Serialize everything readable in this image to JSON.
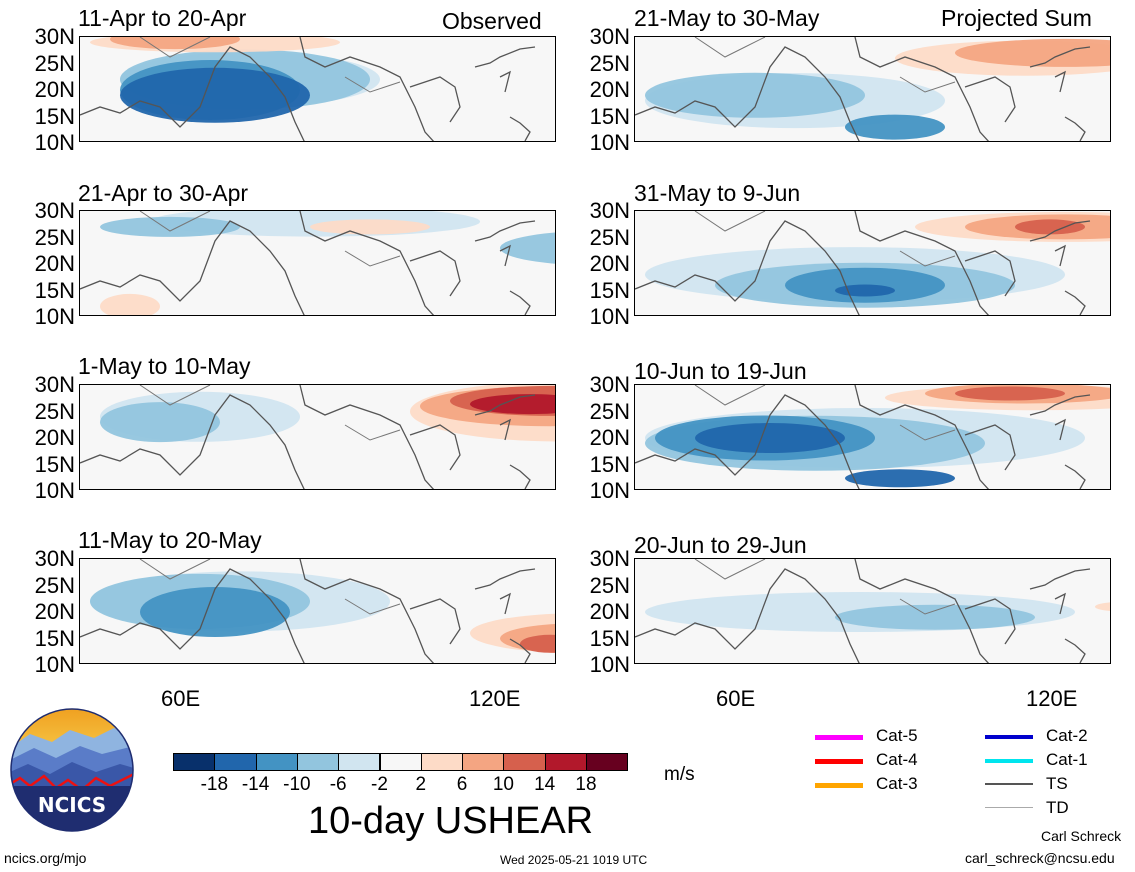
{
  "panels": [
    {
      "title": "11-Apr to 20-Apr",
      "tag": "Observed"
    },
    {
      "title": "21-Apr to 30-Apr",
      "tag": ""
    },
    {
      "title": "1-May to 10-May",
      "tag": ""
    },
    {
      "title": "11-May to 20-May",
      "tag": ""
    },
    {
      "title": "21-May to 30-May",
      "tag": "Projected Sum"
    },
    {
      "title": "31-May to 9-Jun",
      "tag": ""
    },
    {
      "title": "10-Jun to 19-Jun",
      "tag": ""
    },
    {
      "title": "20-Jun to 29-Jun",
      "tag": ""
    }
  ],
  "lat_labels": [
    "30N",
    "25N",
    "20N",
    "15N",
    "10N"
  ],
  "lon_labels": [
    "60E",
    "120E"
  ],
  "colorbar": {
    "colors": [
      "#08306b",
      "#2166ac",
      "#4393c3",
      "#92c5de",
      "#d1e5f0",
      "#f7f7f7",
      "#fddbc7",
      "#f4a582",
      "#d6604d",
      "#b2182b",
      "#67001f"
    ],
    "ticks": [
      "-18",
      "-14",
      "-10",
      "-6",
      "-2",
      "2",
      "6",
      "10",
      "14",
      "18"
    ],
    "units": "m/s"
  },
  "title": "10-day USHEAR",
  "legend": [
    {
      "label": "Cat-5",
      "color": "#ff00ff"
    },
    {
      "label": "Cat-4",
      "color": "#ff0000"
    },
    {
      "label": "Cat-3",
      "color": "#ffa500"
    },
    {
      "label": "Cat-2",
      "color": "#0000cd"
    },
    {
      "label": "Cat-1",
      "color": "#00e5ee"
    },
    {
      "label": "TS",
      "color": "#555555"
    },
    {
      "label": "TD",
      "color": "#aaaaaa"
    }
  ],
  "logo": {
    "text": "NCICS"
  },
  "footer": {
    "url": "ncics.org/mjo",
    "timestamp": "Wed 2025-05-21 1019 UTC",
    "author": "Carl Schreck",
    "email": "carl_schreck@ncsu.edu"
  }
}
